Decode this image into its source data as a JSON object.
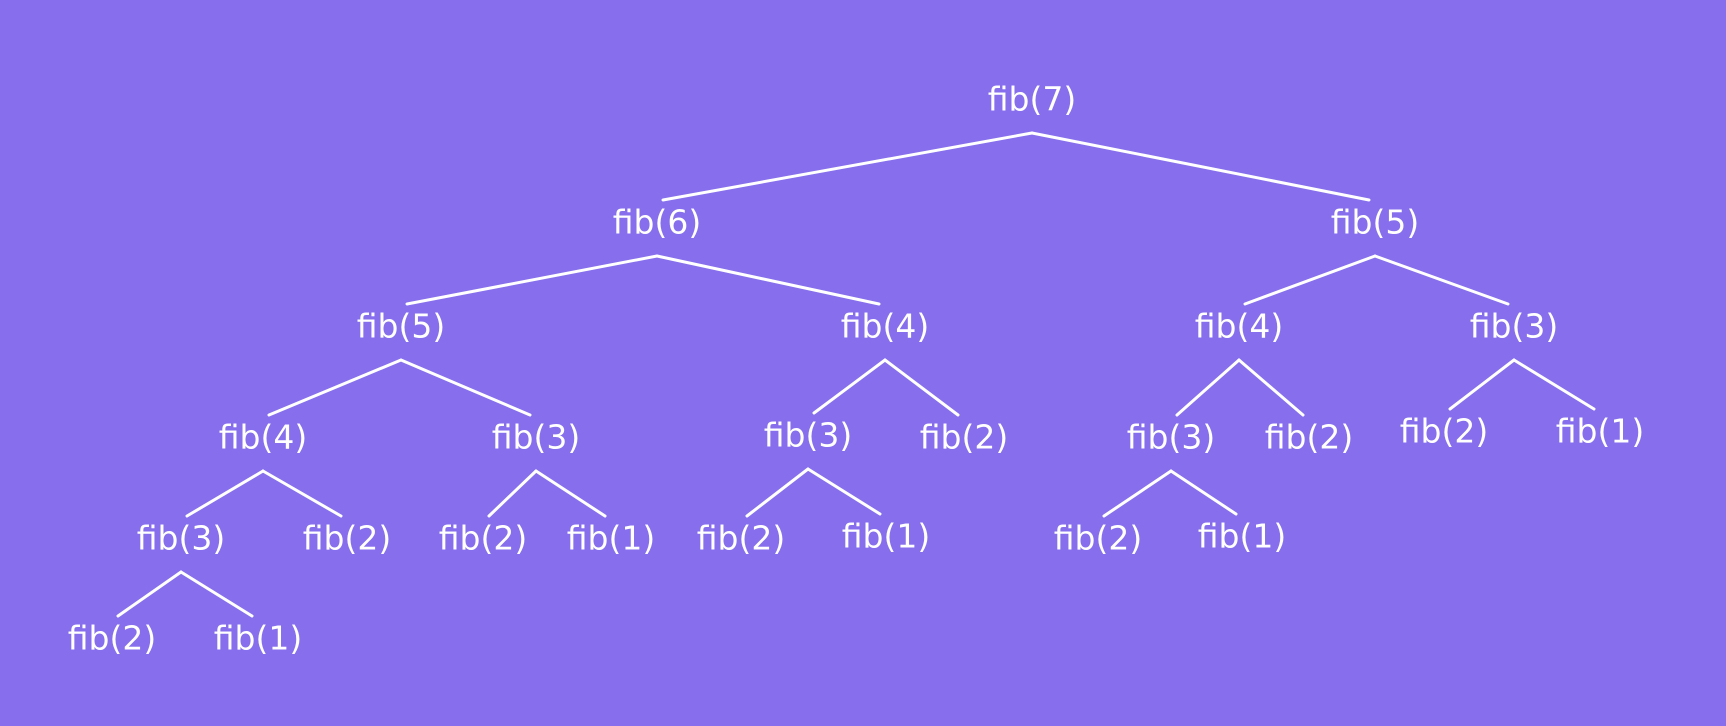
{
  "colors": {
    "background": "#866eec",
    "foreground": "#ffffff"
  },
  "tree": {
    "label": "fib(7)",
    "children": [
      {
        "label": "fib(6)",
        "children": [
          {
            "label": "fib(5)",
            "children": [
              {
                "label": "fib(4)",
                "children": [
                  {
                    "label": "fib(3)",
                    "children": [
                      {
                        "label": "fib(2)"
                      },
                      {
                        "label": "fib(1)"
                      }
                    ]
                  },
                  {
                    "label": "fib(2)"
                  }
                ]
              },
              {
                "label": "fib(3)",
                "children": [
                  {
                    "label": "fib(2)"
                  },
                  {
                    "label": "fib(1)"
                  }
                ]
              }
            ]
          },
          {
            "label": "fib(4)",
            "children": [
              {
                "label": "fib(3)",
                "children": [
                  {
                    "label": "fib(2)"
                  },
                  {
                    "label": "fib(1)"
                  }
                ]
              },
              {
                "label": "fib(2)"
              }
            ]
          }
        ]
      },
      {
        "label": "fib(5)",
        "children": [
          {
            "label": "fib(4)",
            "children": [
              {
                "label": "fib(3)",
                "children": [
                  {
                    "label": "fib(2)"
                  },
                  {
                    "label": "fib(1)"
                  }
                ]
              },
              {
                "label": "fib(2)"
              }
            ]
          },
          {
            "label": "fib(3)",
            "children": [
              {
                "label": "fib(2)"
              },
              {
                "label": "fib(1)"
              }
            ]
          }
        ]
      }
    ]
  }
}
